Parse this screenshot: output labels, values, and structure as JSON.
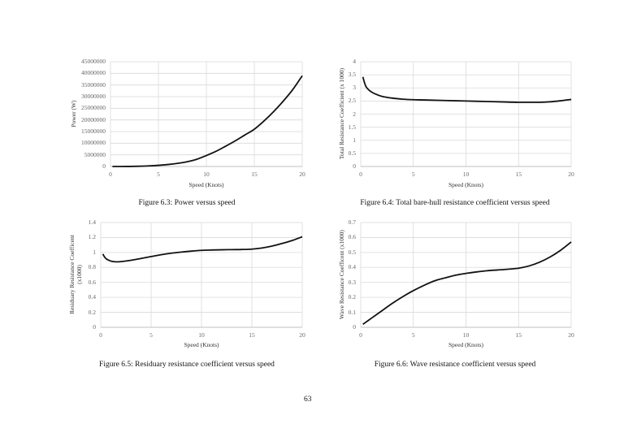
{
  "page": {
    "number": "63"
  },
  "chart_data": [
    {
      "id": "fig63",
      "type": "line",
      "title": "Figure 6.3: Power versus speed",
      "caption": "Figure 6.3: Power versus speed",
      "xlabel": "Speed (Knots)",
      "ylabel": "Power (W)",
      "xlim": [
        0,
        20
      ],
      "ylim": [
        0,
        45000000
      ],
      "xticks": [
        "0",
        "5",
        "10",
        "15",
        "20"
      ],
      "yticks": [
        "0",
        "5000000",
        "10000000",
        "15000000",
        "20000000",
        "25000000",
        "30000000",
        "35000000",
        "40000000",
        "45000000"
      ],
      "grid": true,
      "legend": "none",
      "x": [
        0.2,
        1,
        2,
        3,
        4,
        5,
        6,
        7,
        8,
        9,
        10,
        11,
        12,
        13,
        14,
        15,
        16,
        17,
        18,
        19,
        20
      ],
      "series": [
        {
          "name": "Power",
          "values": [
            0,
            5000,
            30000,
            110000,
            260000,
            500000,
            850000,
            1350000,
            2050000,
            3100000,
            4700000,
            6500000,
            8700000,
            11000000,
            13500000,
            16000000,
            19500000,
            23500000,
            28000000,
            33000000,
            39000000
          ]
        }
      ]
    },
    {
      "id": "fig64",
      "type": "line",
      "title": "Figure 6.4: Total bare-hull resistance coefficient versus speed",
      "caption": "Figure 6.4: Total bare-hull resistance coefficient versus speed",
      "xlabel": "Speed (Knots)",
      "ylabel": "Total Resistance Coefficient (x 1000)",
      "xlim": [
        0,
        20
      ],
      "ylim": [
        0,
        4
      ],
      "xticks": [
        "0",
        "5",
        "10",
        "15",
        "20"
      ],
      "yticks": [
        "0",
        "0.5",
        "1",
        "1.5",
        "2",
        "2.5",
        "3",
        "3.5",
        "4"
      ],
      "grid": true,
      "legend": "none",
      "x": [
        0.2,
        0.5,
        1,
        1.5,
        2,
        3,
        4,
        5,
        6,
        8,
        10,
        12,
        14,
        15,
        16,
        17,
        18,
        19,
        20
      ],
      "series": [
        {
          "name": "Total Resistance Coefficient",
          "values": [
            3.42,
            3.05,
            2.85,
            2.75,
            2.68,
            2.61,
            2.57,
            2.55,
            2.54,
            2.52,
            2.5,
            2.48,
            2.46,
            2.45,
            2.45,
            2.45,
            2.47,
            2.51,
            2.56
          ]
        }
      ]
    },
    {
      "id": "fig65",
      "type": "line",
      "title": "Figure 6.5: Residuary resistance coefficient versus speed",
      "caption": "Figure 6.5: Residuary resistance coefficient versus speed",
      "xlabel": "Speed (Knots)",
      "ylabel": "Residuary Resistance Coefficent (x1000)",
      "ylabel_lines": [
        "Residuary Resistance Coefficent",
        "(x1000)"
      ],
      "xlim": [
        0,
        20
      ],
      "ylim": [
        0,
        1.4
      ],
      "xticks": [
        "0",
        "5",
        "10",
        "15",
        "20"
      ],
      "yticks": [
        "0",
        "0.2",
        "0.4",
        "0.6",
        "0.8",
        "1",
        "1.2",
        "1.4"
      ],
      "grid": true,
      "legend": "none",
      "x": [
        0.2,
        0.5,
        1,
        1.5,
        2,
        3,
        4,
        5,
        6,
        7,
        8,
        9,
        10,
        11,
        12,
        13,
        14,
        15,
        16,
        17,
        18,
        19,
        20
      ],
      "series": [
        {
          "name": "Residuary Resistance Coefficient",
          "values": [
            0.98,
            0.92,
            0.885,
            0.875,
            0.878,
            0.895,
            0.92,
            0.945,
            0.97,
            0.99,
            1.005,
            1.018,
            1.028,
            1.033,
            1.036,
            1.038,
            1.04,
            1.045,
            1.06,
            1.085,
            1.12,
            1.16,
            1.21
          ]
        }
      ]
    },
    {
      "id": "fig66",
      "type": "line",
      "title": "Figure 6.6: Wave resistance coefficient versus speed",
      "caption": "Figure 6.6: Wave resistance coefficient versus speed",
      "xlabel": "Speed (Knots)",
      "ylabel": "Wave Resistance Coefficent (x1000)",
      "xlim": [
        0,
        20
      ],
      "ylim": [
        0,
        0.7
      ],
      "xticks": [
        "0",
        "5",
        "10",
        "15",
        "20"
      ],
      "yticks": [
        "0",
        "0.1",
        "0.2",
        "0.3",
        "0.4",
        "0.5",
        "0.6",
        "0.7"
      ],
      "grid": true,
      "legend": "none",
      "x": [
        0.2,
        1,
        2,
        3,
        4,
        5,
        6,
        7,
        8,
        9,
        10,
        11,
        12,
        13,
        14,
        15,
        16,
        17,
        18,
        19,
        20
      ],
      "series": [
        {
          "name": "Wave Resistance Coefficient",
          "values": [
            0.02,
            0.06,
            0.11,
            0.16,
            0.205,
            0.245,
            0.28,
            0.31,
            0.33,
            0.348,
            0.36,
            0.37,
            0.378,
            0.383,
            0.388,
            0.395,
            0.41,
            0.435,
            0.47,
            0.515,
            0.57
          ]
        }
      ]
    }
  ]
}
